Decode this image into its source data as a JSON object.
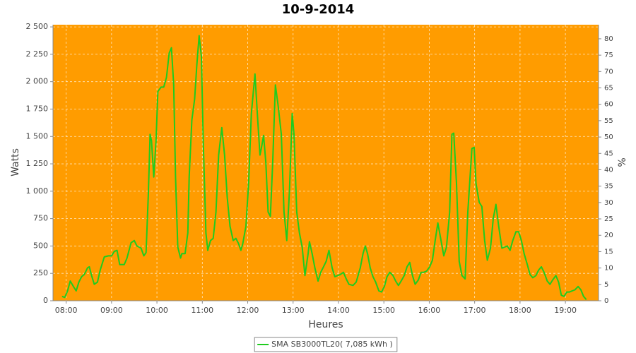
{
  "chart_data": {
    "type": "line",
    "title": "10-9-2014",
    "x_label": "Heures",
    "y_label": "Watts",
    "y2_label": "%",
    "background": "#ff9c00",
    "grid": true,
    "legend": "bottom",
    "xlim": [
      7.71,
      19.73
    ],
    "xticks": [
      {
        "value": 8,
        "label": "08:00"
      },
      {
        "value": 9,
        "label": "09:00"
      },
      {
        "value": 10,
        "label": "10:00"
      },
      {
        "value": 11,
        "label": "11:00"
      },
      {
        "value": 12,
        "label": "12:00"
      },
      {
        "value": 13,
        "label": "13:00"
      },
      {
        "value": 14,
        "label": "14:00"
      },
      {
        "value": 15,
        "label": "15:00"
      },
      {
        "value": 16,
        "label": "16:00"
      },
      {
        "value": 17,
        "label": "17:00"
      },
      {
        "value": 18,
        "label": "18:00"
      },
      {
        "value": 19,
        "label": "19:00"
      }
    ],
    "ylim": [
      0,
      2520
    ],
    "yticks": [
      0,
      250,
      500,
      750,
      {
        "value": 1000,
        "label": "1 000"
      },
      {
        "value": 1250,
        "label": "1 250"
      },
      {
        "value": 1500,
        "label": "1 500"
      },
      {
        "value": 1750,
        "label": "1 750"
      },
      {
        "value": 2000,
        "label": "2 000"
      },
      {
        "value": 2250,
        "label": "2 250"
      },
      {
        "value": 2500,
        "label": "2 500"
      }
    ],
    "y2lim": [
      0,
      84.3
    ],
    "y2ticks": [
      0,
      5,
      10,
      15,
      20,
      25,
      30,
      35,
      40,
      45,
      50,
      55,
      60,
      65,
      70,
      75,
      80
    ],
    "x": [
      7.91,
      7.97,
      8.03,
      8.09,
      8.16,
      8.22,
      8.28,
      8.34,
      8.4,
      8.47,
      8.51,
      8.56,
      8.62,
      8.69,
      8.75,
      8.84,
      8.93,
      9.0,
      9.06,
      9.12,
      9.18,
      9.28,
      9.34,
      9.43,
      9.5,
      9.56,
      9.65,
      9.71,
      9.76,
      9.81,
      9.85,
      9.88,
      9.93,
      9.98,
      10.02,
      10.09,
      10.15,
      10.21,
      10.27,
      10.32,
      10.37,
      10.41,
      10.46,
      10.52,
      10.55,
      10.62,
      10.68,
      10.71,
      10.77,
      10.83,
      10.88,
      10.93,
      10.98,
      11.02,
      11.08,
      11.12,
      11.18,
      11.24,
      11.3,
      11.36,
      11.43,
      11.49,
      11.55,
      11.61,
      11.68,
      11.74,
      11.8,
      11.85,
      11.89,
      11.96,
      12.02,
      12.08,
      12.16,
      12.22,
      12.27,
      12.3,
      12.35,
      12.4,
      12.45,
      12.5,
      12.55,
      12.61,
      12.67,
      12.74,
      12.8,
      12.86,
      12.92,
      12.98,
      13.02,
      13.08,
      13.14,
      13.2,
      13.26,
      13.33,
      13.36,
      13.42,
      13.48,
      13.55,
      13.61,
      13.67,
      13.73,
      13.79,
      13.86,
      13.92,
      13.98,
      14.04,
      14.11,
      14.17,
      14.23,
      14.32,
      14.39,
      14.48,
      14.54,
      14.59,
      14.64,
      14.7,
      14.76,
      14.82,
      14.89,
      14.95,
      15.01,
      15.07,
      15.13,
      15.2,
      15.26,
      15.32,
      15.38,
      15.45,
      15.51,
      15.57,
      15.63,
      15.69,
      15.76,
      15.82,
      15.88,
      15.94,
      16.01,
      16.07,
      16.13,
      16.19,
      16.26,
      16.32,
      16.38,
      16.45,
      16.5,
      16.54,
      16.6,
      16.66,
      16.72,
      16.79,
      16.85,
      16.94,
      16.99,
      17.03,
      17.1,
      17.16,
      17.22,
      17.28,
      17.35,
      17.41,
      17.47,
      17.53,
      17.6,
      17.66,
      17.72,
      17.78,
      17.84,
      17.91,
      17.97,
      18.03,
      18.09,
      18.16,
      18.22,
      18.28,
      18.35,
      18.41,
      18.47,
      18.53,
      18.6,
      18.66,
      18.72,
      18.79,
      18.85,
      18.91,
      18.97,
      19.03,
      19.09,
      19.15,
      19.21,
      19.28,
      19.34,
      19.4,
      19.46
    ],
    "series": [
      {
        "name": "SMA SB3000TL20( 7,085 kWh )",
        "color": "#1fcc1f",
        "values": [
          40,
          30,
          90,
          180,
          130,
          90,
          170,
          220,
          240,
          300,
          310,
          230,
          150,
          170,
          280,
          400,
          410,
          410,
          450,
          460,
          330,
          330,
          390,
          530,
          550,
          500,
          480,
          410,
          440,
          970,
          1520,
          1460,
          1130,
          1460,
          1910,
          1950,
          1950,
          2040,
          2260,
          2310,
          1970,
          1130,
          490,
          390,
          430,
          430,
          620,
          1130,
          1650,
          1840,
          2160,
          2420,
          2230,
          1460,
          620,
          460,
          550,
          570,
          810,
          1330,
          1580,
          1330,
          940,
          680,
          550,
          570,
          520,
          460,
          520,
          680,
          1070,
          1710,
          2070,
          1650,
          1330,
          1390,
          1510,
          1260,
          810,
          770,
          1260,
          1970,
          1780,
          1520,
          810,
          550,
          1000,
          1710,
          1520,
          810,
          620,
          490,
          230,
          430,
          540,
          430,
          300,
          180,
          260,
          310,
          360,
          460,
          300,
          220,
          230,
          240,
          260,
          200,
          150,
          140,
          170,
          300,
          430,
          500,
          430,
          300,
          220,
          170,
          90,
          80,
          130,
          220,
          260,
          230,
          180,
          140,
          180,
          230,
          310,
          350,
          230,
          150,
          190,
          260,
          260,
          270,
          310,
          370,
          550,
          710,
          550,
          410,
          490,
          810,
          1520,
          1530,
          1070,
          360,
          230,
          200,
          810,
          1390,
          1400,
          1070,
          900,
          860,
          550,
          370,
          480,
          750,
          880,
          680,
          480,
          490,
          500,
          460,
          550,
          630,
          630,
          550,
          430,
          330,
          240,
          210,
          230,
          280,
          310,
          260,
          180,
          150,
          190,
          230,
          170,
          50,
          40,
          80,
          80,
          90,
          100,
          130,
          100,
          40,
          10
        ]
      }
    ]
  }
}
